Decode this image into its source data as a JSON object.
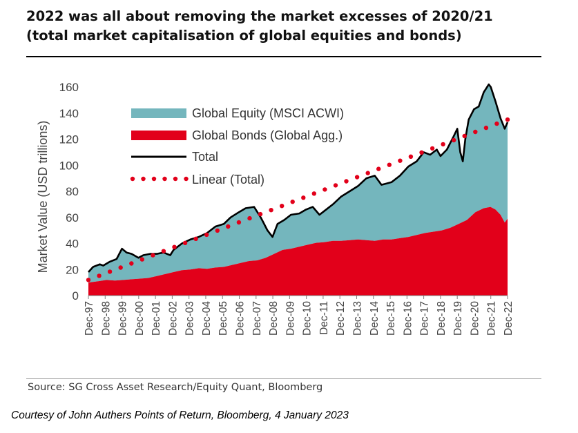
{
  "title_line1": "2022 was all about removing the market excesses of 2020/21",
  "title_line2": "(total market capitalisation of global equities and bonds)",
  "source": "Source: SG Cross Asset Research/Equity Quant, Bloomberg",
  "courtesy": "Courtesy of John Authers Points of Return, Bloomberg, 4 January 2023",
  "colors": {
    "equity": "#74b6bd",
    "bonds": "#e2001a",
    "total": "#000000",
    "linear": "#e2001a"
  },
  "chart_data": {
    "type": "area",
    "ylabel": "Market Value (USD trillions)",
    "xlabel": "",
    "ylim": [
      0,
      160
    ],
    "yticks": [
      0,
      20,
      40,
      60,
      80,
      100,
      120,
      140,
      160
    ],
    "xlim": [
      1997.92,
      2022.92
    ],
    "x_tick_labels": [
      "Dec-97",
      "Dec-98",
      "Dec-99",
      "Dec-00",
      "Dec-01",
      "Dec-02",
      "Dec-03",
      "Dec-04",
      "Dec-05",
      "Dec-06",
      "Dec-07",
      "Dec-08",
      "Dec-09",
      "Dec-10",
      "Dec-11",
      "Dec-12",
      "Dec-13",
      "Dec-14",
      "Dec-15",
      "Dec-16",
      "Dec-17",
      "Dec-18",
      "Dec-19",
      "Dec-20",
      "Dec-21",
      "Dec-22"
    ],
    "legend": [
      "Global Equity (MSCI ACWI)",
      "Global Bonds (Global Agg.)",
      "Total",
      "Linear (Total)"
    ],
    "legend_placement": "top-left",
    "series": [
      {
        "name": "Global Bonds (Global Agg.)",
        "kind": "area",
        "x": [
          1997.92,
          1998.5,
          1999.0,
          1999.5,
          2000.0,
          2000.5,
          2001.0,
          2001.5,
          2002.0,
          2002.5,
          2003.0,
          2003.5,
          2004.0,
          2004.5,
          2005.0,
          2005.5,
          2006.0,
          2006.5,
          2007.0,
          2007.5,
          2008.0,
          2008.5,
          2009.0,
          2009.5,
          2010.0,
          2010.5,
          2011.0,
          2011.5,
          2012.0,
          2012.5,
          2013.0,
          2013.5,
          2014.0,
          2014.5,
          2015.0,
          2015.5,
          2016.0,
          2016.5,
          2017.0,
          2017.5,
          2018.0,
          2018.5,
          2019.0,
          2019.5,
          2020.0,
          2020.5,
          2021.0,
          2021.5,
          2021.9,
          2022.2,
          2022.5,
          2022.75,
          2022.92
        ],
        "values": [
          10,
          11,
          12,
          11.5,
          12,
          12.5,
          13,
          13.5,
          15,
          16.5,
          18,
          19.5,
          20,
          21,
          20.5,
          21.5,
          22,
          23.5,
          25,
          26.5,
          27,
          29,
          32,
          35,
          36,
          37.5,
          39,
          40.5,
          41,
          42,
          42,
          42.5,
          43,
          42.5,
          42,
          43,
          43,
          44,
          45,
          46.5,
          48,
          49,
          50,
          52,
          55,
          58,
          64,
          67,
          68,
          66,
          62,
          56,
          59
        ]
      },
      {
        "name": "Total",
        "kind": "line",
        "x": [
          1997.92,
          1998.2,
          1998.6,
          1998.8,
          1999.2,
          1999.6,
          1999.92,
          2000.2,
          2000.5,
          2000.9,
          2001.2,
          2001.6,
          2002.0,
          2002.4,
          2002.8,
          2003.0,
          2003.5,
          2004.0,
          2004.5,
          2005.0,
          2005.5,
          2006.0,
          2006.4,
          2006.9,
          2007.3,
          2007.8,
          2008.2,
          2008.6,
          2008.9,
          2009.2,
          2009.6,
          2010.0,
          2010.5,
          2010.9,
          2011.3,
          2011.7,
          2012.0,
          2012.5,
          2013.0,
          2013.5,
          2014.0,
          2014.5,
          2015.0,
          2015.4,
          2015.7,
          2016.0,
          2016.5,
          2017.0,
          2017.5,
          2017.92,
          2018.3,
          2018.7,
          2018.92,
          2019.3,
          2019.7,
          2019.92,
          2020.1,
          2020.25,
          2020.4,
          2020.6,
          2020.92,
          2021.2,
          2021.5,
          2021.8,
          2021.92,
          2022.2,
          2022.5,
          2022.75,
          2022.92
        ],
        "values": [
          18,
          22,
          24,
          23,
          26,
          28,
          36,
          33,
          32,
          29,
          31,
          32,
          32,
          33,
          31,
          35,
          40,
          43,
          45,
          48,
          53,
          55,
          60,
          64,
          67,
          68,
          60,
          50,
          45,
          55,
          58,
          62,
          63,
          66,
          68,
          62,
          65,
          70,
          76,
          80,
          84,
          90,
          92,
          85,
          86,
          87,
          92,
          99,
          103,
          110,
          108,
          112,
          107,
          112,
          122,
          128,
          110,
          103,
          120,
          135,
          143,
          145,
          156,
          162,
          160,
          149,
          136,
          128,
          133
        ]
      },
      {
        "name": "Linear (Total)",
        "kind": "dotted-line",
        "x": [
          1997.92,
          2022.92
        ],
        "values": [
          12,
          135
        ]
      }
    ]
  }
}
